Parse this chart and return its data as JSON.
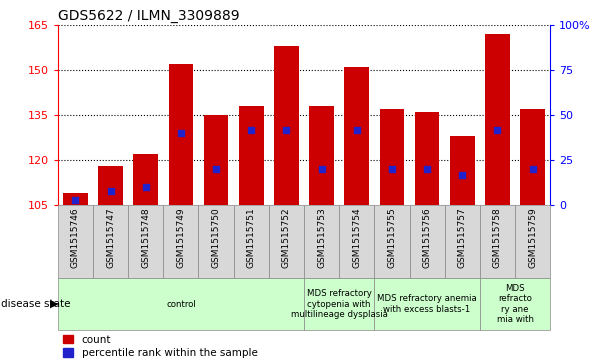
{
  "title": "GDS5622 / ILMN_3309889",
  "samples": [
    "GSM1515746",
    "GSM1515747",
    "GSM1515748",
    "GSM1515749",
    "GSM1515750",
    "GSM1515751",
    "GSM1515752",
    "GSM1515753",
    "GSM1515754",
    "GSM1515755",
    "GSM1515756",
    "GSM1515757",
    "GSM1515758",
    "GSM1515759"
  ],
  "counts": [
    109,
    118,
    122,
    152,
    135,
    138,
    158,
    138,
    151,
    137,
    136,
    128,
    162,
    137
  ],
  "percentile_ranks": [
    3,
    8,
    10,
    40,
    20,
    42,
    42,
    20,
    42,
    20,
    20,
    17,
    42,
    20
  ],
  "ylim_left": [
    105,
    165
  ],
  "ylim_right": [
    0,
    100
  ],
  "yticks_left": [
    105,
    120,
    135,
    150,
    165
  ],
  "yticks_right": [
    0,
    25,
    50,
    75,
    100
  ],
  "bar_color": "#cc0000",
  "dot_color": "#2222cc",
  "disease_groups": [
    {
      "label": "control",
      "start": 0,
      "end": 7,
      "color": "#ccffcc"
    },
    {
      "label": "MDS refractory\ncytopenia with\nmultilineage dysplasia",
      "start": 7,
      "end": 9,
      "color": "#ccffcc"
    },
    {
      "label": "MDS refractory anemia\nwith excess blasts-1",
      "start": 9,
      "end": 12,
      "color": "#ccffcc"
    },
    {
      "label": "MDS\nrefracto\nry ane\nmia with",
      "start": 12,
      "end": 14,
      "color": "#ccffcc"
    }
  ],
  "base_value": 105
}
